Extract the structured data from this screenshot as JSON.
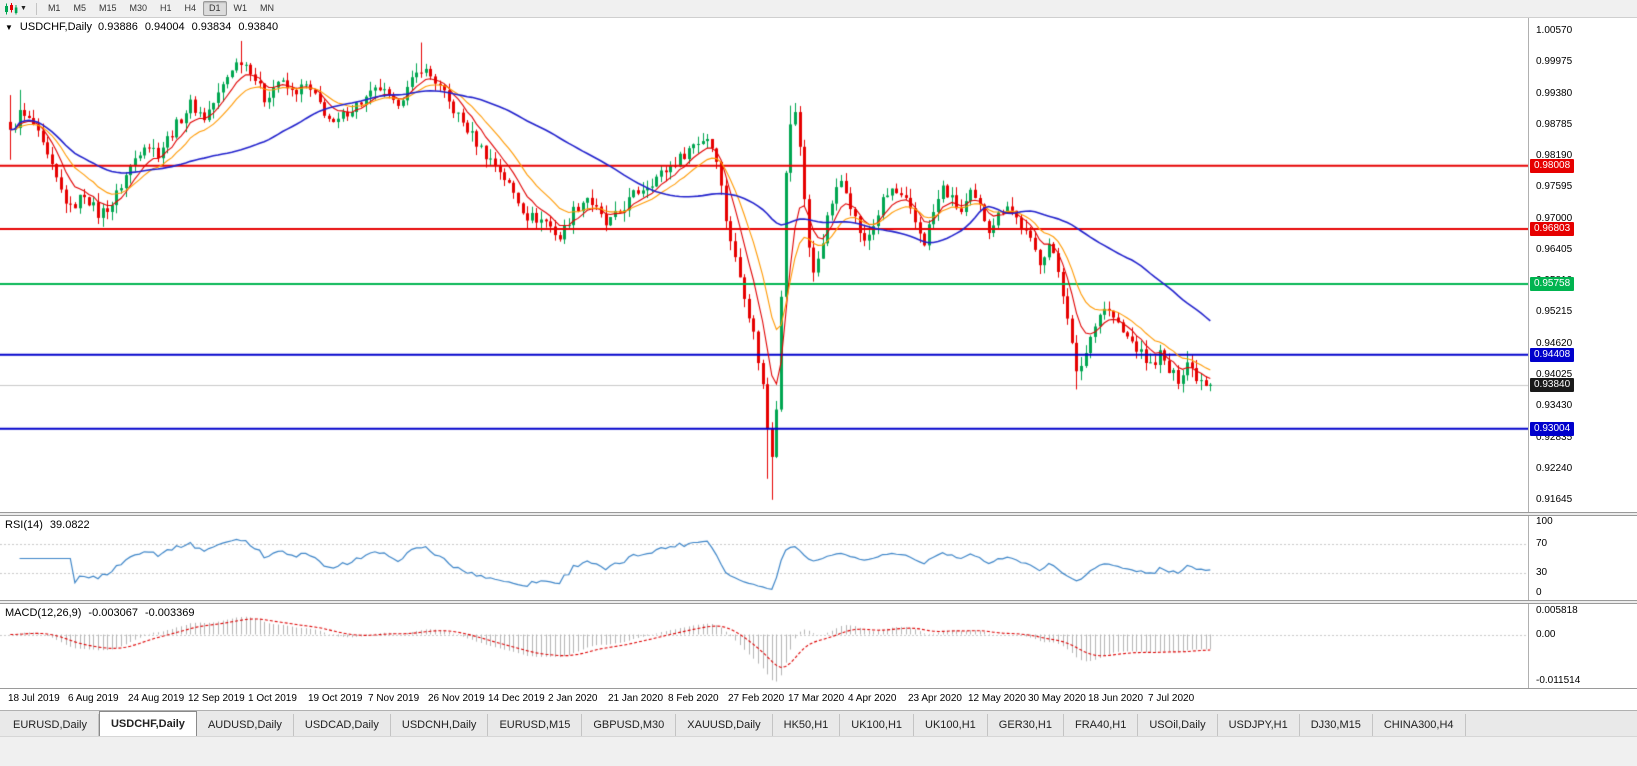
{
  "toolbar": {
    "timeframes": [
      "M1",
      "M5",
      "M15",
      "M30",
      "H1",
      "H4",
      "D1",
      "W1",
      "MN"
    ],
    "active_timeframe": "D1",
    "chart_icon": "candlestick-chart-icon",
    "caret_icon": "chevron-down-icon"
  },
  "price_pane": {
    "title": {
      "symbol": "USDCHF,Daily",
      "open": "0.93886",
      "high": "0.94004",
      "low": "0.93834",
      "close": "0.93840"
    },
    "y_ticks": [
      "1.00570",
      "0.99975",
      "0.99380",
      "0.98785",
      "0.98190",
      "0.97595",
      "0.97000",
      "0.96405",
      "0.95810",
      "0.95215",
      "0.94620",
      "0.94025",
      "0.93430",
      "0.92835",
      "0.92240",
      "0.91645"
    ],
    "y_range": [
      0.91418,
      1.00817
    ],
    "levels": [
      {
        "price": 0.98008,
        "label": "0.98008",
        "color": "#e60000"
      },
      {
        "price": 0.96803,
        "label": "0.96803",
        "color": "#e60000"
      },
      {
        "price": 0.95758,
        "label": "0.95758",
        "color": "#00b450"
      },
      {
        "price": 0.94408,
        "label": "0.94408",
        "color": "#0000cc"
      },
      {
        "price": 0.93004,
        "label": "0.93004",
        "color": "#0000cc"
      }
    ],
    "current_price": {
      "value": 0.9384,
      "label": "0.93840",
      "bg": "#1a1a1a"
    },
    "bid_line_color": "#c8c8c8"
  },
  "rsi_pane": {
    "title": "RSI(14)",
    "value": "39.0822",
    "ticks": [
      "100",
      "70",
      "30",
      "0"
    ],
    "level_lines": [
      70,
      30
    ],
    "line_color": "#3d85c8"
  },
  "macd_pane": {
    "title": "MACD(12,26,9)",
    "value_main": "-0.003067",
    "value_signal": "-0.003369",
    "ticks": [
      "0.005818",
      "0.00",
      "-0.011514"
    ],
    "range": [
      -0.011514,
      0.005818
    ],
    "histogram_color": "#b4b4b4",
    "signal_color": "#dd0000"
  },
  "x_axis": {
    "labels": [
      "18 Jul 2019",
      "6 Aug 2019",
      "24 Aug 2019",
      "12 Sep 2019",
      "1 Oct 2019",
      "19 Oct 2019",
      "7 Nov 2019",
      "26 Nov 2019",
      "14 Dec 2019",
      "2 Jan 2020",
      "21 Jan 2020",
      "8 Feb 2020",
      "27 Feb 2020",
      "17 Mar 2020",
      "4 Apr 2020",
      "23 Apr 2020",
      "12 May 2020",
      "30 May 2020",
      "18 Jun 2020",
      "7 Jul 2020"
    ]
  },
  "tab_bar": {
    "tabs": [
      "EURUSD,Daily",
      "USDCHF,Daily",
      "AUDUSD,Daily",
      "USDCAD,Daily",
      "USDCNH,Daily",
      "EURUSD,M15",
      "GBPUSD,M30",
      "XAUUSD,Daily",
      "HK50,H1",
      "UK100,H1",
      "UK100,H1",
      "GER30,H1",
      "FRA40,H1",
      "USOil,Daily",
      "USDJPY,H1",
      "DJ30,M15",
      "CHINA300,H4"
    ],
    "active_index": 1
  },
  "chart_data": {
    "type": "candlestick",
    "symbol": "USDCHF",
    "timeframe": "Daily",
    "bars": 261,
    "up_color": "#00a651",
    "down_color": "#e60000",
    "anchor_closes": [
      [
        0,
        0.9862
      ],
      [
        2,
        0.99
      ],
      [
        5,
        0.9878
      ],
      [
        8,
        0.9815
      ],
      [
        11,
        0.9752
      ],
      [
        13,
        0.9718
      ],
      [
        16,
        0.9748
      ],
      [
        19,
        0.9708
      ],
      [
        22,
        0.9728
      ],
      [
        26,
        0.98
      ],
      [
        29,
        0.9845
      ],
      [
        32,
        0.9825
      ],
      [
        36,
        0.9878
      ],
      [
        39,
        0.9918
      ],
      [
        42,
        0.9892
      ],
      [
        45,
        0.9935
      ],
      [
        48,
        0.9988
      ],
      [
        50,
        1.0002
      ],
      [
        52,
        0.9985
      ],
      [
        55,
        0.9928
      ],
      [
        58,
        0.9962
      ],
      [
        61,
        0.994
      ],
      [
        64,
        0.9952
      ],
      [
        67,
        0.9918
      ],
      [
        70,
        0.9875
      ],
      [
        73,
        0.9905
      ],
      [
        77,
        0.9928
      ],
      [
        80,
        0.9948
      ],
      [
        83,
        0.9915
      ],
      [
        86,
        0.9945
      ],
      [
        89,
        0.9988
      ],
      [
        92,
        0.9962
      ],
      [
        95,
        0.992
      ],
      [
        98,
        0.9882
      ],
      [
        101,
        0.9845
      ],
      [
        103,
        0.9822
      ],
      [
        106,
        0.9792
      ],
      [
        109,
        0.9748
      ],
      [
        112,
        0.9705
      ],
      [
        116,
        0.9695
      ],
      [
        119,
        0.9663
      ],
      [
        122,
        0.9715
      ],
      [
        125,
        0.9742
      ],
      [
        129,
        0.9688
      ],
      [
        132,
        0.9712
      ],
      [
        135,
        0.9745
      ],
      [
        139,
        0.9772
      ],
      [
        142,
        0.9792
      ],
      [
        145,
        0.9815
      ],
      [
        148,
        0.9842
      ],
      [
        151,
        0.9855
      ],
      [
        153,
        0.9818
      ],
      [
        155,
        0.97
      ],
      [
        157,
        0.9622
      ],
      [
        159,
        0.9558
      ],
      [
        161,
        0.948
      ],
      [
        163,
        0.9382
      ],
      [
        164,
        0.9302
      ],
      [
        165,
        0.9255
      ],
      [
        166,
        0.9345
      ],
      [
        167,
        0.956
      ],
      [
        168,
        0.9782
      ],
      [
        169,
        0.9882
      ],
      [
        170,
        0.9898
      ],
      [
        171,
        0.9838
      ],
      [
        172,
        0.9742
      ],
      [
        173,
        0.9645
      ],
      [
        174,
        0.9592
      ],
      [
        176,
        0.9662
      ],
      [
        178,
        0.9732
      ],
      [
        180,
        0.9772
      ],
      [
        181,
        0.9758
      ],
      [
        183,
        0.97
      ],
      [
        185,
        0.9652
      ],
      [
        187,
        0.9688
      ],
      [
        189,
        0.9732
      ],
      [
        191,
        0.9755
      ],
      [
        194,
        0.973
      ],
      [
        196,
        0.9692
      ],
      [
        198,
        0.9656
      ],
      [
        200,
        0.9712
      ],
      [
        202,
        0.9758
      ],
      [
        204,
        0.9735
      ],
      [
        206,
        0.9712
      ],
      [
        208,
        0.9745
      ],
      [
        210,
        0.972
      ],
      [
        212,
        0.9682
      ],
      [
        214,
        0.9706
      ],
      [
        216,
        0.973
      ],
      [
        219,
        0.9686
      ],
      [
        221,
        0.9655
      ],
      [
        223,
        0.962
      ],
      [
        225,
        0.9652
      ],
      [
        227,
        0.96
      ],
      [
        228,
        0.956
      ],
      [
        229,
        0.9518
      ],
      [
        230,
        0.9458
      ],
      [
        231,
        0.9402
      ],
      [
        233,
        0.9445
      ],
      [
        235,
        0.9505
      ],
      [
        237,
        0.9532
      ],
      [
        239,
        0.9512
      ],
      [
        241,
        0.9482
      ],
      [
        243,
        0.9465
      ],
      [
        245,
        0.9442
      ],
      [
        247,
        0.942
      ],
      [
        249,
        0.9442
      ],
      [
        251,
        0.9408
      ],
      [
        253,
        0.9395
      ],
      [
        255,
        0.9428
      ],
      [
        257,
        0.94
      ],
      [
        260,
        0.9384
      ]
    ],
    "wick_overrides": {
      "0": {
        "high": 0.9935,
        "low": 0.9812
      },
      "2": {
        "high": 0.9945
      },
      "50": {
        "high": 1.0038
      },
      "89": {
        "high": 1.0035
      },
      "164": {
        "low": 0.9205
      },
      "165": {
        "low": 0.9165
      },
      "169": {
        "high": 0.9915
      },
      "170": {
        "high": 0.992
      },
      "231": {
        "low": 0.9375
      },
      "255": {
        "high": 0.9448
      }
    },
    "ma_lines": [
      {
        "type": "ema",
        "period": 7,
        "color": "#e00000"
      },
      {
        "type": "ema",
        "period": 14,
        "color": "#ff9900"
      },
      {
        "type": "sma",
        "period": 45,
        "color": "#2020cc"
      }
    ],
    "indicators": [
      {
        "name": "RSI",
        "period": 14
      },
      {
        "name": "MACD",
        "fast": 12,
        "slow": 26,
        "signal": 9
      }
    ]
  }
}
